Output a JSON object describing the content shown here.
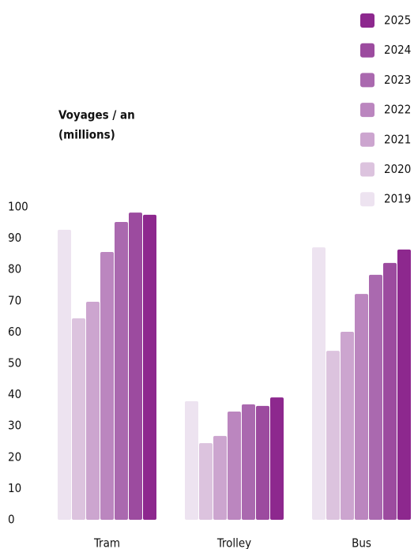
{
  "chart_data": {
    "type": "bar",
    "ylabel": [
      "Voyages / an",
      "(millions)"
    ],
    "categories": [
      "Tram",
      "Trolley",
      "Bus"
    ],
    "series": [
      {
        "name": "2019",
        "color": "#ede3f0",
        "values": [
          92.7,
          37.9,
          87.1
        ]
      },
      {
        "name": "2020",
        "color": "#dcc3de",
        "values": [
          64.4,
          24.5,
          54
        ]
      },
      {
        "name": "2021",
        "color": "#cca5cf",
        "values": [
          69.7,
          26.8,
          60.1
        ]
      },
      {
        "name": "2022",
        "color": "#bb86bf",
        "values": [
          85.6,
          34.6,
          72.2
        ]
      },
      {
        "name": "2023",
        "color": "#aa69af",
        "values": [
          95.2,
          36.9,
          78.3
        ]
      },
      {
        "name": "2024",
        "color": "#9c4b9f",
        "values": [
          98.2,
          36.4,
          82.1
        ]
      },
      {
        "name": "2025",
        "color": "#8d288e",
        "values": [
          97.5,
          39.1,
          86.4
        ]
      }
    ],
    "ylim": [
      0,
      100
    ],
    "yticks": [
      0,
      10,
      20,
      30,
      40,
      50,
      60,
      70,
      80,
      90,
      100
    ],
    "grid": false,
    "legend": "top-right"
  }
}
